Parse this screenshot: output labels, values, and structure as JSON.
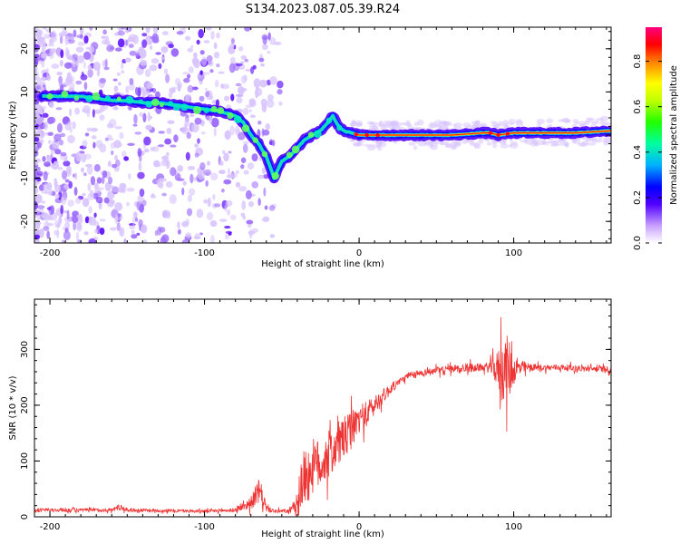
{
  "title": "S134.2023.087.05.39.R24",
  "chart_data": [
    {
      "type": "heatmap",
      "name": "spectrogram",
      "xlabel": "Height of straight line (km)",
      "ylabel": "Frequency (Hz)",
      "xlim": [
        -210,
        163
      ],
      "ylim": [
        -25,
        25
      ],
      "xticks": [
        -200,
        -100,
        0,
        100
      ],
      "yticks": [
        -20,
        -10,
        0,
        10,
        20
      ],
      "colorbar": {
        "label": "Normalized spectral amplitude",
        "range": [
          0,
          0.95
        ],
        "ticks": [
          0.0,
          0.2,
          0.4,
          0.6,
          0.8
        ],
        "tick_labels": [
          "0.0",
          "0.2",
          "0.4",
          "0.6",
          "0.8"
        ]
      },
      "ridge": {
        "x": [
          -205,
          -190,
          -180,
          -170,
          -160,
          -150,
          -140,
          -130,
          -120,
          -110,
          -100,
          -90,
          -85,
          -80,
          -75,
          -70,
          -65,
          -60,
          -57,
          -55,
          -50,
          -45,
          -40,
          -35,
          -30,
          -25,
          -20,
          -17,
          -15,
          -12,
          -10,
          -5,
          0,
          10,
          20,
          40,
          60,
          80,
          85,
          90,
          100,
          120,
          140,
          163
        ],
        "freq": [
          9,
          9,
          9,
          8.5,
          8,
          8,
          7.5,
          7.5,
          7,
          6.5,
          6,
          5.5,
          5,
          4.5,
          3,
          0,
          -2,
          -5,
          -8,
          -10,
          -6,
          -5,
          -3,
          -1,
          0,
          1,
          3,
          4.5,
          3,
          1.5,
          1,
          0.5,
          0,
          0,
          0,
          0,
          0,
          0.5,
          0.5,
          0,
          0.5,
          0.5,
          0.5,
          1
        ]
      }
    },
    {
      "type": "line",
      "name": "snr",
      "xlabel": "Height of straight line (km)",
      "ylabel": "SNR (10 * v/v)",
      "xlim": [
        -210,
        163
      ],
      "ylim": [
        0,
        390
      ],
      "xticks": [
        -200,
        -100,
        0,
        100
      ],
      "yticks": [
        0,
        100,
        200,
        300
      ],
      "color": "#ee3333",
      "envelope": {
        "x": [
          -210,
          -160,
          -155,
          -150,
          -100,
          -80,
          -70,
          -65,
          -62,
          -60,
          -55,
          -45,
          -40,
          -38,
          -35,
          -32,
          -30,
          -25,
          -20,
          -15,
          -10,
          -5,
          0,
          5,
          10,
          15,
          20,
          25,
          30,
          40,
          50,
          60,
          70,
          80,
          85,
          90,
          92,
          94,
          96,
          98,
          100,
          110,
          120,
          130,
          140,
          150,
          160,
          163
        ],
        "base": [
          12,
          12,
          18,
          12,
          10,
          12,
          25,
          45,
          35,
          15,
          10,
          10,
          20,
          60,
          70,
          80,
          90,
          95,
          110,
          125,
          140,
          155,
          175,
          185,
          200,
          215,
          228,
          240,
          250,
          258,
          262,
          265,
          267,
          268,
          268,
          265,
          265,
          265,
          265,
          265,
          265,
          268,
          267,
          268,
          266,
          265,
          265,
          262
        ],
        "amp": [
          6,
          6,
          10,
          6,
          5,
          6,
          20,
          40,
          30,
          10,
          6,
          6,
          40,
          110,
          90,
          100,
          90,
          80,
          80,
          75,
          70,
          60,
          50,
          40,
          35,
          25,
          18,
          12,
          10,
          10,
          12,
          12,
          15,
          12,
          20,
          60,
          120,
          100,
          110,
          90,
          40,
          12,
          10,
          10,
          10,
          10,
          10,
          10
        ]
      }
    }
  ],
  "colors": {
    "snr_line": "#ee3333",
    "ridge_colormap": [
      "#ffffff",
      "#b080ff",
      "#4000ff",
      "#0000ff",
      "#00c8ff",
      "#00ff80",
      "#80ff00",
      "#ffff00",
      "#ff8000",
      "#ff0000",
      "#ff0080"
    ]
  }
}
